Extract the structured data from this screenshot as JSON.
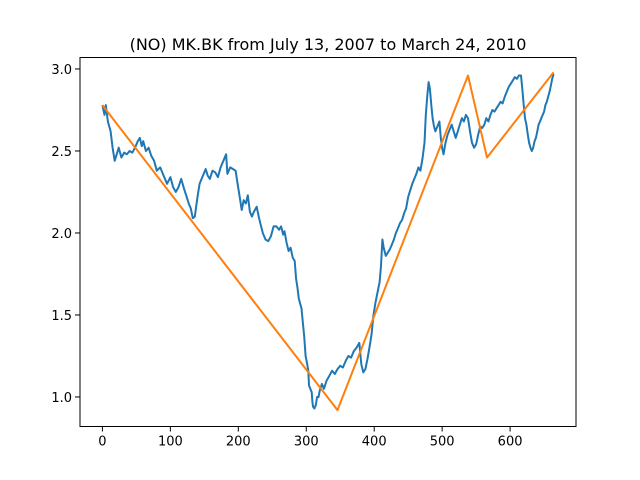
{
  "chart_data": {
    "type": "line",
    "title": "(NO) MK.BK from July 13, 2007 to March 24, 2010",
    "xlabel": "",
    "ylabel": "",
    "xlim": [
      -33,
      697
    ],
    "ylim": [
      0.82,
      3.07
    ],
    "xticks": [
      0,
      100,
      200,
      300,
      400,
      500,
      600
    ],
    "yticks": [
      1.0,
      1.5,
      2.0,
      2.5,
      3.0
    ],
    "xtick_labels": [
      "0",
      "100",
      "200",
      "300",
      "400",
      "500",
      "600"
    ],
    "ytick_labels": [
      "1.0",
      "1.5",
      "2.0",
      "2.5",
      "3.0"
    ],
    "grid": false,
    "series": [
      {
        "color": "#1f77b4",
        "points": [
          [
            0,
            2.78
          ],
          [
            3,
            2.72
          ],
          [
            5,
            2.78
          ],
          [
            8,
            2.68
          ],
          [
            12,
            2.62
          ],
          [
            15,
            2.52
          ],
          [
            18,
            2.44
          ],
          [
            21,
            2.48
          ],
          [
            24,
            2.52
          ],
          [
            28,
            2.46
          ],
          [
            32,
            2.49
          ],
          [
            36,
            2.48
          ],
          [
            40,
            2.5
          ],
          [
            44,
            2.49
          ],
          [
            48,
            2.52
          ],
          [
            52,
            2.56
          ],
          [
            55,
            2.58
          ],
          [
            58,
            2.53
          ],
          [
            60,
            2.56
          ],
          [
            64,
            2.5
          ],
          [
            68,
            2.52
          ],
          [
            72,
            2.47
          ],
          [
            76,
            2.44
          ],
          [
            80,
            2.38
          ],
          [
            85,
            2.4
          ],
          [
            90,
            2.35
          ],
          [
            95,
            2.3
          ],
          [
            100,
            2.34
          ],
          [
            104,
            2.28
          ],
          [
            108,
            2.25
          ],
          [
            112,
            2.28
          ],
          [
            116,
            2.33
          ],
          [
            120,
            2.27
          ],
          [
            124,
            2.22
          ],
          [
            127,
            2.18
          ],
          [
            130,
            2.15
          ],
          [
            133,
            2.09
          ],
          [
            136,
            2.1
          ],
          [
            140,
            2.22
          ],
          [
            143,
            2.3
          ],
          [
            146,
            2.33
          ],
          [
            149,
            2.36
          ],
          [
            152,
            2.39
          ],
          [
            155,
            2.35
          ],
          [
            158,
            2.33
          ],
          [
            162,
            2.38
          ],
          [
            166,
            2.37
          ],
          [
            170,
            2.34
          ],
          [
            174,
            2.4
          ],
          [
            178,
            2.44
          ],
          [
            182,
            2.48
          ],
          [
            184,
            2.36
          ],
          [
            188,
            2.4
          ],
          [
            192,
            2.39
          ],
          [
            196,
            2.38
          ],
          [
            199,
            2.3
          ],
          [
            202,
            2.22
          ],
          [
            205,
            2.14
          ],
          [
            208,
            2.2
          ],
          [
            211,
            2.18
          ],
          [
            214,
            2.23
          ],
          [
            217,
            2.13
          ],
          [
            220,
            2.1
          ],
          [
            223,
            2.13
          ],
          [
            227,
            2.16
          ],
          [
            230,
            2.1
          ],
          [
            233,
            2.05
          ],
          [
            236,
            2.0
          ],
          [
            240,
            1.96
          ],
          [
            244,
            1.95
          ],
          [
            248,
            1.98
          ],
          [
            252,
            2.04
          ],
          [
            256,
            2.04
          ],
          [
            260,
            2.02
          ],
          [
            263,
            2.04
          ],
          [
            266,
            1.99
          ],
          [
            268,
            2.01
          ],
          [
            271,
            1.94
          ],
          [
            274,
            1.89
          ],
          [
            277,
            1.91
          ],
          [
            280,
            1.85
          ],
          [
            283,
            1.83
          ],
          [
            285,
            1.72
          ],
          [
            287,
            1.67
          ],
          [
            289,
            1.6
          ],
          [
            291,
            1.57
          ],
          [
            293,
            1.54
          ],
          [
            295,
            1.45
          ],
          [
            297,
            1.37
          ],
          [
            299,
            1.25
          ],
          [
            301,
            1.21
          ],
          [
            303,
            1.16
          ],
          [
            304,
            1.07
          ],
          [
            306,
            1.05
          ],
          [
            308,
            1.03
          ],
          [
            309,
            0.97
          ],
          [
            310,
            0.94
          ],
          [
            312,
            0.93
          ],
          [
            314,
            0.95
          ],
          [
            316,
            1.0
          ],
          [
            318,
            1.0
          ],
          [
            320,
            1.04
          ],
          [
            323,
            1.08
          ],
          [
            326,
            1.05
          ],
          [
            330,
            1.1
          ],
          [
            334,
            1.13
          ],
          [
            338,
            1.16
          ],
          [
            342,
            1.14
          ],
          [
            346,
            1.17
          ],
          [
            350,
            1.19
          ],
          [
            354,
            1.18
          ],
          [
            358,
            1.22
          ],
          [
            362,
            1.25
          ],
          [
            366,
            1.24
          ],
          [
            370,
            1.28
          ],
          [
            374,
            1.3
          ],
          [
            378,
            1.33
          ],
          [
            381,
            1.2
          ],
          [
            384,
            1.15
          ],
          [
            387,
            1.17
          ],
          [
            390,
            1.23
          ],
          [
            393,
            1.3
          ],
          [
            396,
            1.38
          ],
          [
            399,
            1.5
          ],
          [
            402,
            1.58
          ],
          [
            405,
            1.64
          ],
          [
            408,
            1.7
          ],
          [
            410,
            1.8
          ],
          [
            412,
            1.96
          ],
          [
            414,
            1.91
          ],
          [
            417,
            1.86
          ],
          [
            420,
            1.88
          ],
          [
            423,
            1.9
          ],
          [
            426,
            1.93
          ],
          [
            429,
            1.96
          ],
          [
            432,
            2.0
          ],
          [
            435,
            2.03
          ],
          [
            438,
            2.06
          ],
          [
            441,
            2.08
          ],
          [
            444,
            2.12
          ],
          [
            447,
            2.15
          ],
          [
            450,
            2.22
          ],
          [
            453,
            2.26
          ],
          [
            456,
            2.3
          ],
          [
            459,
            2.33
          ],
          [
            462,
            2.36
          ],
          [
            465,
            2.4
          ],
          [
            468,
            2.38
          ],
          [
            471,
            2.45
          ],
          [
            474,
            2.55
          ],
          [
            476,
            2.72
          ],
          [
            478,
            2.83
          ],
          [
            480,
            2.92
          ],
          [
            482,
            2.88
          ],
          [
            484,
            2.78
          ],
          [
            486,
            2.7
          ],
          [
            488,
            2.65
          ],
          [
            490,
            2.62
          ],
          [
            493,
            2.65
          ],
          [
            496,
            2.68
          ],
          [
            498,
            2.58
          ],
          [
            500,
            2.52
          ],
          [
            502,
            2.48
          ],
          [
            505,
            2.55
          ],
          [
            508,
            2.6
          ],
          [
            511,
            2.63
          ],
          [
            514,
            2.66
          ],
          [
            517,
            2.62
          ],
          [
            520,
            2.58
          ],
          [
            523,
            2.62
          ],
          [
            526,
            2.66
          ],
          [
            529,
            2.7
          ],
          [
            532,
            2.68
          ],
          [
            535,
            2.72
          ],
          [
            538,
            2.7
          ],
          [
            541,
            2.62
          ],
          [
            544,
            2.55
          ],
          [
            547,
            2.52
          ],
          [
            550,
            2.54
          ],
          [
            553,
            2.6
          ],
          [
            556,
            2.65
          ],
          [
            559,
            2.64
          ],
          [
            562,
            2.66
          ],
          [
            565,
            2.7
          ],
          [
            568,
            2.68
          ],
          [
            571,
            2.72
          ],
          [
            574,
            2.75
          ],
          [
            577,
            2.74
          ],
          [
            580,
            2.76
          ],
          [
            583,
            2.78
          ],
          [
            586,
            2.8
          ],
          [
            589,
            2.79
          ],
          [
            592,
            2.83
          ],
          [
            595,
            2.86
          ],
          [
            598,
            2.89
          ],
          [
            601,
            2.91
          ],
          [
            604,
            2.93
          ],
          [
            607,
            2.95
          ],
          [
            610,
            2.94
          ],
          [
            613,
            2.96
          ],
          [
            616,
            2.96
          ],
          [
            618,
            2.88
          ],
          [
            620,
            2.78
          ],
          [
            622,
            2.7
          ],
          [
            624,
            2.66
          ],
          [
            626,
            2.6
          ],
          [
            628,
            2.55
          ],
          [
            630,
            2.52
          ],
          [
            632,
            2.5
          ],
          [
            634,
            2.52
          ],
          [
            636,
            2.56
          ],
          [
            638,
            2.58
          ],
          [
            640,
            2.62
          ],
          [
            642,
            2.66
          ],
          [
            644,
            2.68
          ],
          [
            646,
            2.7
          ],
          [
            648,
            2.72
          ],
          [
            650,
            2.74
          ],
          [
            652,
            2.78
          ],
          [
            654,
            2.8
          ],
          [
            656,
            2.83
          ],
          [
            658,
            2.86
          ],
          [
            660,
            2.9
          ],
          [
            662,
            2.94
          ],
          [
            664,
            2.97
          ]
        ]
      },
      {
        "color": "#ff7f0e",
        "points": [
          [
            0,
            2.78
          ],
          [
            346,
            0.92
          ],
          [
            538,
            2.96
          ],
          [
            566,
            2.46
          ],
          [
            664,
            2.98
          ]
        ]
      }
    ]
  }
}
